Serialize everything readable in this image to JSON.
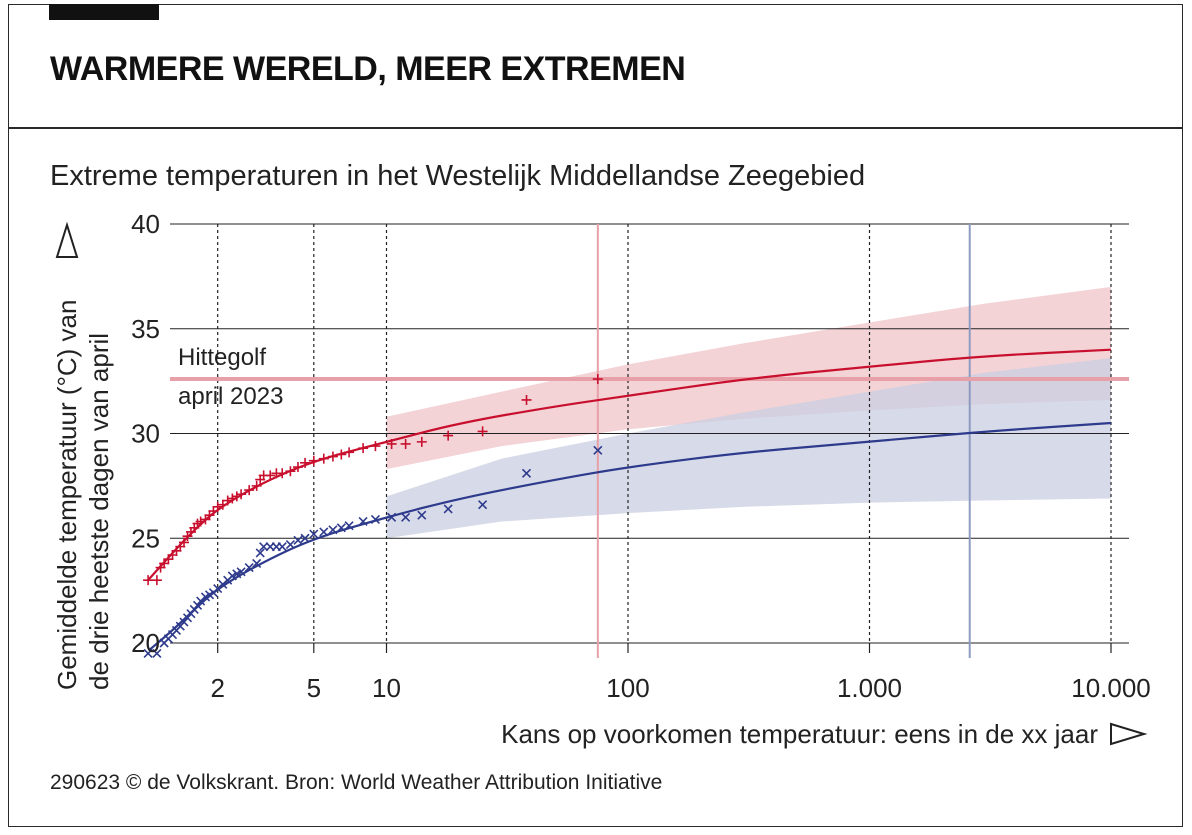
{
  "header": {
    "title": "WARMERE WERELD, MEER EXTREMEN",
    "subtitle": "Extreme temperaturen in het Westelijk Middellandse Zeegebied"
  },
  "footer": {
    "source": "290623 © de Volkskrant. Bron: World Weather Attribution Initiative"
  },
  "colors": {
    "red": "#c8102e",
    "red_band": "#efc4c8",
    "blue": "#2e3a8c",
    "blue_band": "#c9cfe2",
    "event_line": "#e8a0a8",
    "blue_vline": "#8e9bc0"
  },
  "chart_data": {
    "type": "scatter",
    "xscale": "log",
    "xlabel": "Kans op voorkomen temperatuur: eens in de xx jaar",
    "ylabel": "Gemiddelde temperatuur (°C) van de drie heetste dagen van april",
    "ylim": [
      20,
      40
    ],
    "yticks": [
      20,
      25,
      30,
      35,
      40
    ],
    "xticks": [
      {
        "value": 2,
        "label": "2"
      },
      {
        "value": 5,
        "label": "5"
      },
      {
        "value": 10,
        "label": "10"
      },
      {
        "value": 100,
        "label": "100"
      },
      {
        "value": 1000,
        "label": "1.000"
      },
      {
        "value": 10000,
        "label": "10.000"
      }
    ],
    "xlim": [
      1.0,
      10000
    ],
    "annotation": {
      "line1": "Hittegolf",
      "line2": "april 2023",
      "y": 32.6
    },
    "vlines": [
      {
        "x": 75,
        "series": "red"
      },
      {
        "x": 2600,
        "series": "blue"
      }
    ],
    "series": [
      {
        "key": "red",
        "marker": "+",
        "fit": [
          [
            1.03,
            23.0
          ],
          [
            1.3,
            24.3
          ],
          [
            1.6,
            25.4
          ],
          [
            2,
            26.4
          ],
          [
            3,
            27.6
          ],
          [
            5,
            28.7
          ],
          [
            10,
            29.6
          ],
          [
            20,
            30.5
          ],
          [
            50,
            31.3
          ],
          [
            100,
            31.8
          ],
          [
            300,
            32.6
          ],
          [
            1000,
            33.2
          ],
          [
            3000,
            33.7
          ],
          [
            10000,
            34.0
          ]
        ],
        "band_upper": [
          [
            10,
            30.8
          ],
          [
            30,
            32.0
          ],
          [
            100,
            33.3
          ],
          [
            300,
            34.3
          ],
          [
            1000,
            35.3
          ],
          [
            3000,
            36.2
          ],
          [
            10000,
            37.0
          ]
        ],
        "band_lower": [
          [
            10,
            28.3
          ],
          [
            30,
            29.4
          ],
          [
            100,
            30.2
          ],
          [
            300,
            30.7
          ],
          [
            1000,
            31.1
          ],
          [
            3000,
            31.4
          ],
          [
            10000,
            31.6
          ]
        ],
        "points": [
          [
            1.03,
            23.0
          ],
          [
            1.12,
            23.0
          ],
          [
            1.16,
            23.6
          ],
          [
            1.2,
            23.8
          ],
          [
            1.25,
            24.0
          ],
          [
            1.3,
            24.2
          ],
          [
            1.35,
            24.4
          ],
          [
            1.4,
            24.6
          ],
          [
            1.45,
            24.8
          ],
          [
            1.5,
            25.1
          ],
          [
            1.55,
            25.3
          ],
          [
            1.6,
            25.5
          ],
          [
            1.65,
            25.7
          ],
          [
            1.7,
            25.8
          ],
          [
            1.78,
            25.9
          ],
          [
            1.85,
            26.1
          ],
          [
            1.92,
            26.3
          ],
          [
            2.0,
            26.5
          ],
          [
            2.1,
            26.6
          ],
          [
            2.2,
            26.8
          ],
          [
            2.3,
            26.9
          ],
          [
            2.4,
            27.0
          ],
          [
            2.5,
            27.1
          ],
          [
            2.7,
            27.3
          ],
          [
            2.9,
            27.5
          ],
          [
            3.0,
            27.8
          ],
          [
            3.1,
            28.0
          ],
          [
            3.3,
            28.0
          ],
          [
            3.5,
            28.1
          ],
          [
            3.7,
            28.1
          ],
          [
            4.0,
            28.2
          ],
          [
            4.3,
            28.4
          ],
          [
            4.6,
            28.6
          ],
          [
            5.0,
            28.7
          ],
          [
            5.5,
            28.8
          ],
          [
            6.0,
            28.9
          ],
          [
            6.5,
            29.0
          ],
          [
            7.0,
            29.1
          ],
          [
            8.0,
            29.3
          ],
          [
            9.0,
            29.4
          ],
          [
            10.5,
            29.5
          ],
          [
            12.0,
            29.5
          ],
          [
            14.0,
            29.6
          ],
          [
            18.0,
            29.9
          ],
          [
            25.0,
            30.1
          ],
          [
            38.0,
            31.6
          ],
          [
            75.0,
            32.6
          ]
        ]
      },
      {
        "key": "blue",
        "marker": "x",
        "fit": [
          [
            1.05,
            19.7
          ],
          [
            1.3,
            20.6
          ],
          [
            1.6,
            21.6
          ],
          [
            2,
            22.6
          ],
          [
            3,
            23.8
          ],
          [
            5,
            25.0
          ],
          [
            10,
            26.0
          ],
          [
            20,
            26.9
          ],
          [
            50,
            27.8
          ],
          [
            100,
            28.4
          ],
          [
            300,
            29.1
          ],
          [
            1000,
            29.6
          ],
          [
            3000,
            30.1
          ],
          [
            10000,
            30.5
          ]
        ],
        "band_upper": [
          [
            10,
            27.0
          ],
          [
            30,
            28.8
          ],
          [
            100,
            30.0
          ],
          [
            300,
            31.0
          ],
          [
            1000,
            32.0
          ],
          [
            3000,
            32.9
          ],
          [
            10000,
            33.6
          ]
        ],
        "band_lower": [
          [
            10,
            25.0
          ],
          [
            30,
            25.8
          ],
          [
            100,
            26.2
          ],
          [
            300,
            26.5
          ],
          [
            1000,
            26.7
          ],
          [
            3000,
            26.8
          ],
          [
            10000,
            26.9
          ]
        ],
        "points": [
          [
            1.03,
            19.5
          ],
          [
            1.12,
            19.5
          ],
          [
            1.2,
            20.0
          ],
          [
            1.25,
            20.2
          ],
          [
            1.3,
            20.4
          ],
          [
            1.35,
            20.6
          ],
          [
            1.4,
            20.8
          ],
          [
            1.45,
            21.0
          ],
          [
            1.5,
            21.2
          ],
          [
            1.55,
            21.4
          ],
          [
            1.6,
            21.6
          ],
          [
            1.65,
            21.8
          ],
          [
            1.7,
            22.0
          ],
          [
            1.78,
            22.2
          ],
          [
            1.85,
            22.3
          ],
          [
            1.92,
            22.4
          ],
          [
            2.0,
            22.6
          ],
          [
            2.1,
            22.8
          ],
          [
            2.2,
            23.0
          ],
          [
            2.3,
            23.2
          ],
          [
            2.4,
            23.3
          ],
          [
            2.5,
            23.4
          ],
          [
            2.7,
            23.6
          ],
          [
            2.9,
            23.8
          ],
          [
            3.0,
            24.3
          ],
          [
            3.1,
            24.6
          ],
          [
            3.3,
            24.6
          ],
          [
            3.5,
            24.6
          ],
          [
            3.7,
            24.6
          ],
          [
            4.0,
            24.7
          ],
          [
            4.3,
            24.9
          ],
          [
            4.6,
            25.0
          ],
          [
            5.0,
            25.2
          ],
          [
            5.5,
            25.3
          ],
          [
            6.0,
            25.4
          ],
          [
            6.5,
            25.5
          ],
          [
            7.0,
            25.6
          ],
          [
            8.0,
            25.8
          ],
          [
            9.0,
            25.9
          ],
          [
            10.5,
            26.0
          ],
          [
            12.0,
            26.0
          ],
          [
            14.0,
            26.1
          ],
          [
            18.0,
            26.4
          ],
          [
            25.0,
            26.6
          ],
          [
            38.0,
            28.1
          ],
          [
            75.0,
            29.2
          ]
        ]
      }
    ]
  }
}
